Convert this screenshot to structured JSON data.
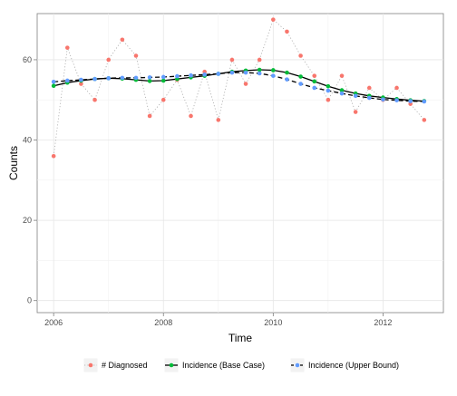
{
  "chart_data": {
    "type": "line",
    "xlabel": "Time",
    "ylabel": "Counts",
    "xlim": [
      2005.7,
      2013.1
    ],
    "ylim": [
      -3,
      71.5
    ],
    "x_ticks": [
      2006,
      2008,
      2010,
      2012
    ],
    "x_tick_labels": [
      "2006",
      "2008",
      "2010",
      "2012"
    ],
    "y_ticks": [
      0,
      20,
      40,
      60
    ],
    "y_tick_labels": [
      "0",
      "20",
      "40",
      "60"
    ],
    "grid": true,
    "legend_position": "bottom",
    "x": [
      2006.0,
      2006.25,
      2006.5,
      2006.75,
      2007.0,
      2007.25,
      2007.5,
      2007.75,
      2008.0,
      2008.25,
      2008.5,
      2008.75,
      2009.0,
      2009.25,
      2009.5,
      2009.75,
      2010.0,
      2010.25,
      2010.5,
      2010.75,
      2011.0,
      2011.25,
      2011.5,
      2011.75,
      2012.0,
      2012.25,
      2012.5,
      2012.75
    ],
    "series": [
      {
        "name": "# Diagnosed",
        "color": "#F8766D",
        "style": "dotted-with-points",
        "values": [
          36,
          63,
          54,
          50,
          60,
          65,
          61,
          46,
          50,
          55,
          46,
          57,
          45,
          60,
          54,
          60,
          70,
          67,
          61,
          56,
          50,
          56,
          47,
          53,
          50,
          53,
          49,
          45
        ]
      },
      {
        "name": "Incidence (Base Case)",
        "color": "#00BA38",
        "style": "solid-with-points",
        "values": [
          53.5,
          54.3,
          54.8,
          55.2,
          55.4,
          55.3,
          55.0,
          54.7,
          54.8,
          55.2,
          55.6,
          56.0,
          56.5,
          57.0,
          57.3,
          57.5,
          57.4,
          56.8,
          55.8,
          54.6,
          53.4,
          52.4,
          51.6,
          51.0,
          50.6,
          50.2,
          49.9,
          49.7
        ]
      },
      {
        "name": "Incidence (Upper Bound)",
        "color": "#619CFF",
        "style": "dashed-with-points",
        "values": [
          54.5,
          54.8,
          55.0,
          55.2,
          55.4,
          55.5,
          55.5,
          55.6,
          55.7,
          55.9,
          56.1,
          56.3,
          56.5,
          56.8,
          56.8,
          56.6,
          56.0,
          55.1,
          54.0,
          53.0,
          52.3,
          51.6,
          51.0,
          50.5,
          50.1,
          49.9,
          49.7,
          49.6
        ]
      }
    ]
  }
}
